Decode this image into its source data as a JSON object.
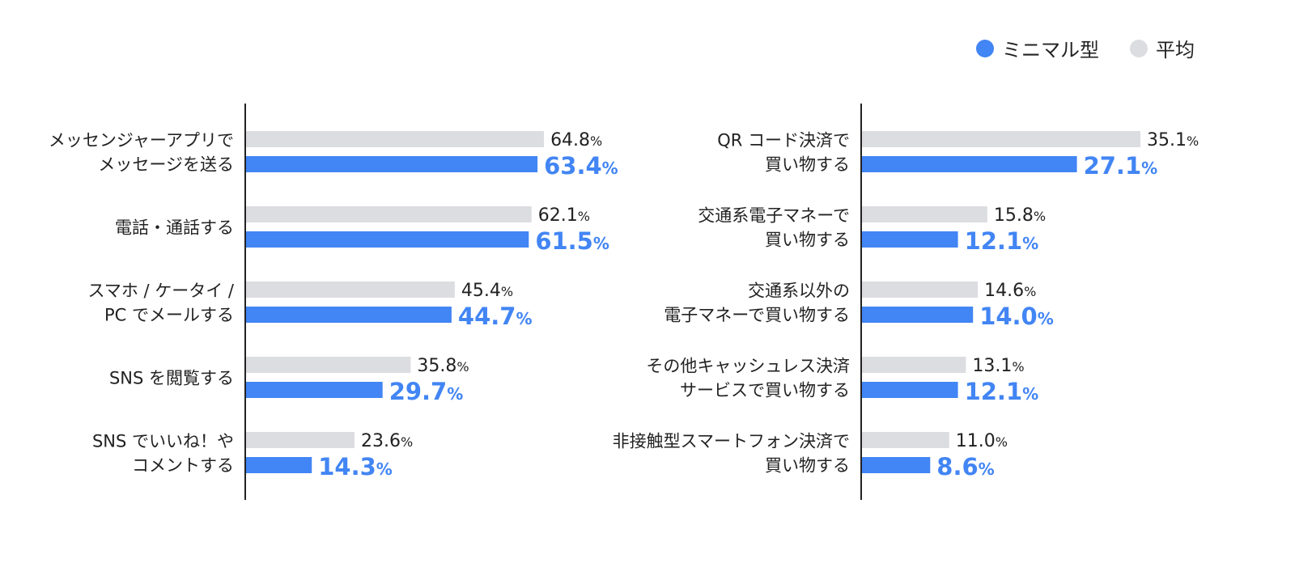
{
  "legend": {
    "minimal_label": "ミニマル型",
    "average_label": "平均"
  },
  "colors": {
    "minimal": "#4285f4",
    "average": "#dcdde1",
    "axis": "#222222",
    "text": "#222222"
  },
  "percent_sign": "%",
  "chart_data": [
    {
      "type": "bar",
      "orientation": "horizontal",
      "categories": [
        [
          "メッセンジャーアプリで",
          "メッセージを送る"
        ],
        [
          "電話・通話する"
        ],
        [
          "スマホ / ケータイ /",
          "PC でメールする"
        ],
        [
          "SNS を閲覧する"
        ],
        [
          "SNS でいいね！や",
          "コメントする"
        ]
      ],
      "series": [
        {
          "name": "平均",
          "values": [
            64.8,
            62.1,
            45.4,
            35.8,
            23.6
          ]
        },
        {
          "name": "ミニマル型",
          "values": [
            63.4,
            61.5,
            44.7,
            29.7,
            14.3
          ]
        }
      ],
      "xlim": [
        0,
        100
      ]
    },
    {
      "type": "bar",
      "orientation": "horizontal",
      "categories": [
        [
          "QR コード決済で",
          "買い物する"
        ],
        [
          "交通系電子マネーで",
          "買い物する"
        ],
        [
          "交通系以外の",
          "電子マネーで買い物する"
        ],
        [
          "その他キャッシュレス決済",
          "サービスで買い物する"
        ],
        [
          "非接触型スマートフォン決済で",
          "買い物する"
        ]
      ],
      "series": [
        {
          "name": "平均",
          "values": [
            35.1,
            15.8,
            14.6,
            13.1,
            11.0
          ]
        },
        {
          "name": "ミニマル型",
          "values": [
            27.1,
            12.1,
            14.0,
            12.1,
            8.6
          ]
        }
      ],
      "xlim": [
        0,
        55
      ]
    }
  ]
}
